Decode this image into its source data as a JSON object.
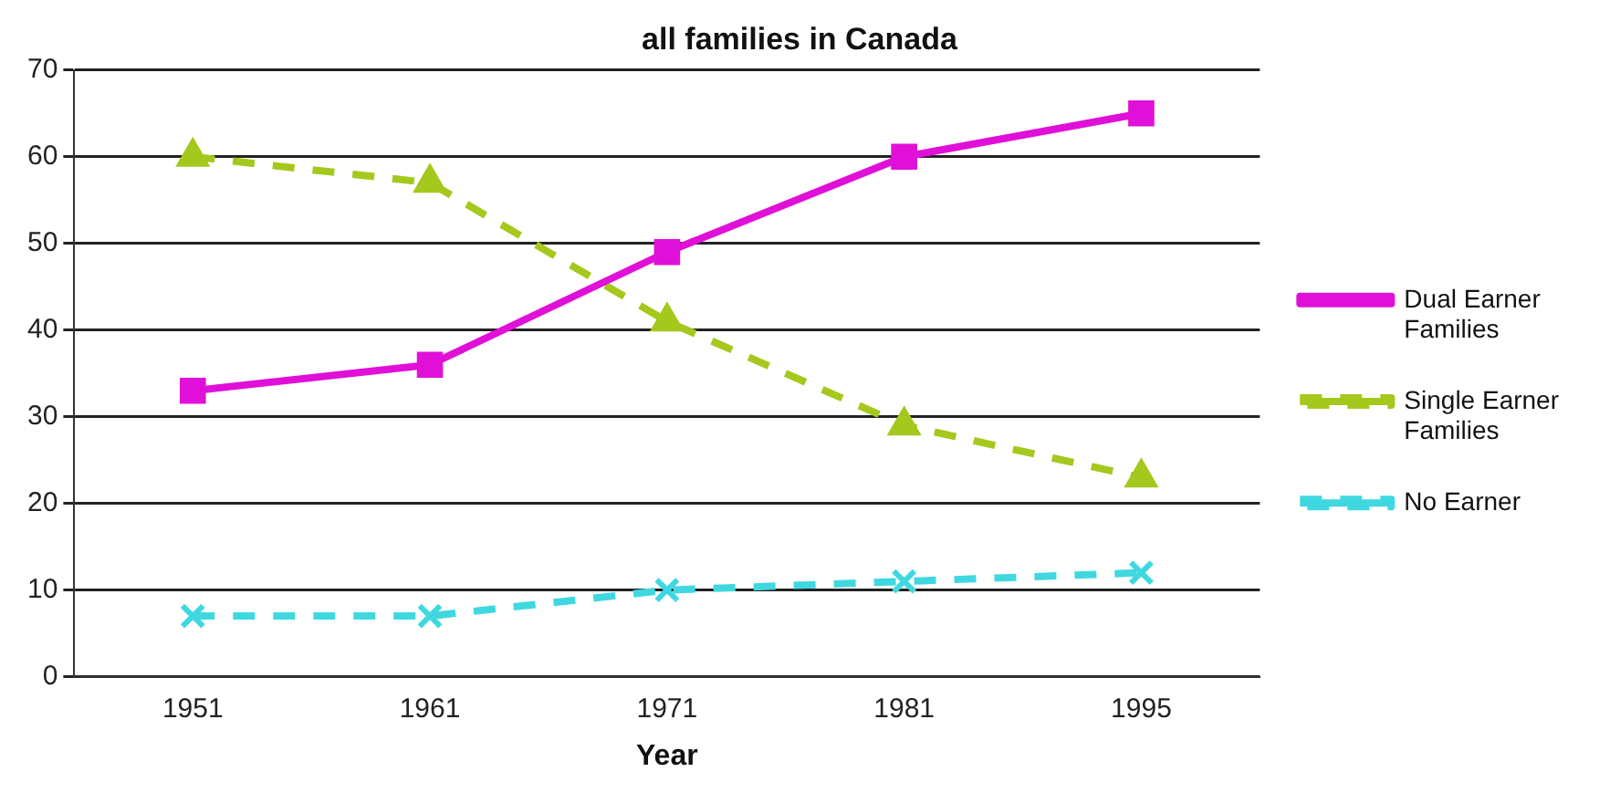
{
  "chart_data": {
    "type": "line",
    "title": "all families in Canada",
    "xlabel": "Year",
    "categories": [
      "1951",
      "1961",
      "1971",
      "1981",
      "1995"
    ],
    "series": [
      {
        "name": "Dual Earner Families",
        "color": "#e010d8",
        "values": [
          33,
          36,
          49,
          60,
          65
        ],
        "marker": "square",
        "line_style": "solid"
      },
      {
        "name": "Single Earner Families",
        "color": "#a4c81c",
        "values": [
          60,
          57,
          41,
          29,
          23
        ],
        "marker": "triangle",
        "line_style": "dashed"
      },
      {
        "name": "No Earner",
        "color": "#40d8e0",
        "values": [
          7,
          7,
          10,
          11,
          12
        ],
        "marker": "cross",
        "line_style": "dashed"
      }
    ],
    "ylim": [
      0,
      70
    ],
    "yticks": [
      0,
      10,
      20,
      30,
      40,
      50,
      60,
      70
    ],
    "grid": "y",
    "legend": "right"
  }
}
